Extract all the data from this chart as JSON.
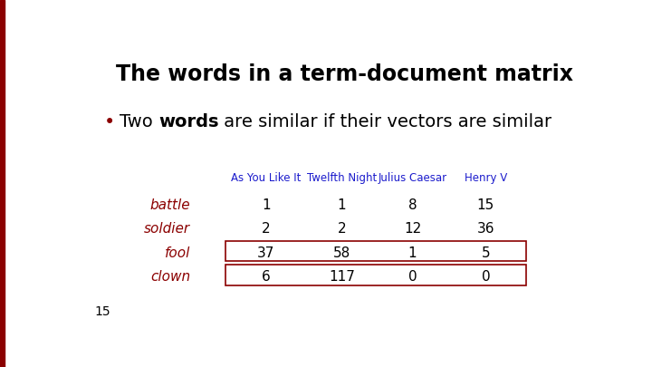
{
  "title": "The words in a term-document matrix",
  "col_headers": [
    "As You Like It",
    "Twelfth Night",
    "Julius Caesar",
    "Henry V"
  ],
  "row_labels": [
    "battle",
    "soldier",
    "fool",
    "clown"
  ],
  "table_data": [
    [
      1,
      1,
      8,
      15
    ],
    [
      2,
      2,
      12,
      36
    ],
    [
      37,
      58,
      1,
      5
    ],
    [
      6,
      117,
      0,
      0
    ]
  ],
  "highlighted_rows": [
    2,
    3
  ],
  "title_color": "#000000",
  "header_color": "#1B1BCC",
  "row_label_color": "#8B0000",
  "data_color": "#000000",
  "highlight_box_color": "#8B0000",
  "bullet_color": "#8B0000",
  "page_number": "15",
  "background_color": "#ffffff",
  "left_bar_color": "#8B0000",
  "left_bar_width": 0.007
}
